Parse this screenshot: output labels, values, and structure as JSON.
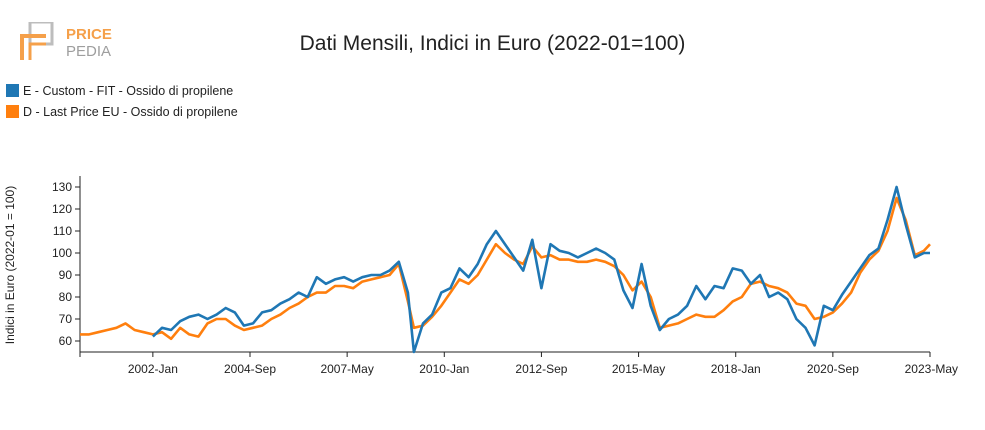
{
  "logo": {
    "brand_top": "PRICE",
    "brand_bottom": "PEDIA",
    "colors": {
      "primary": "#f5a04a",
      "secondary": "#9e9e9e"
    }
  },
  "chart_data": {
    "type": "line",
    "title": "Dati Mensili, Indici in Euro (2022-01=100)",
    "xlabel": "",
    "ylabel": "Indici in Euro (2022-01 = 100)",
    "ylim": [
      55,
      135
    ],
    "yticks": [
      60,
      70,
      80,
      90,
      100,
      110,
      120,
      130
    ],
    "xlim": [
      "2000-01",
      "2023-05"
    ],
    "xticks": [
      "2002-Jan",
      "2004-Sep",
      "2007-May",
      "2010-Jan",
      "2012-Sep",
      "2015-May",
      "2018-Jan",
      "2020-Sep",
      "2023-May"
    ],
    "grid": false,
    "legend_position": "top-left",
    "series": [
      {
        "name": "E - Custom - FIT - Ossido di propilene",
        "color": "#1f77b4",
        "points": [
          [
            "2002-01",
            62
          ],
          [
            "2002-04",
            66
          ],
          [
            "2002-07",
            65
          ],
          [
            "2002-10",
            69
          ],
          [
            "2003-01",
            71
          ],
          [
            "2003-04",
            72
          ],
          [
            "2003-07",
            70
          ],
          [
            "2003-10",
            72
          ],
          [
            "2004-01",
            75
          ],
          [
            "2004-04",
            73
          ],
          [
            "2004-07",
            67
          ],
          [
            "2004-10",
            68
          ],
          [
            "2005-01",
            73
          ],
          [
            "2005-04",
            74
          ],
          [
            "2005-07",
            77
          ],
          [
            "2005-10",
            79
          ],
          [
            "2006-01",
            82
          ],
          [
            "2006-04",
            80
          ],
          [
            "2006-07",
            89
          ],
          [
            "2006-10",
            86
          ],
          [
            "2007-01",
            88
          ],
          [
            "2007-04",
            89
          ],
          [
            "2007-07",
            87
          ],
          [
            "2007-10",
            89
          ],
          [
            "2008-01",
            90
          ],
          [
            "2008-04",
            90
          ],
          [
            "2008-07",
            92
          ],
          [
            "2008-10",
            96
          ],
          [
            "2009-01",
            82
          ],
          [
            "2009-03",
            55
          ],
          [
            "2009-06",
            68
          ],
          [
            "2009-09",
            72
          ],
          [
            "2009-12",
            82
          ],
          [
            "2010-03",
            84
          ],
          [
            "2010-06",
            93
          ],
          [
            "2010-09",
            89
          ],
          [
            "2010-12",
            95
          ],
          [
            "2011-03",
            104
          ],
          [
            "2011-06",
            110
          ],
          [
            "2011-09",
            104
          ],
          [
            "2011-12",
            98
          ],
          [
            "2012-03",
            92
          ],
          [
            "2012-06",
            106
          ],
          [
            "2012-09",
            84
          ],
          [
            "2012-12",
            104
          ],
          [
            "2013-03",
            101
          ],
          [
            "2013-06",
            100
          ],
          [
            "2013-09",
            98
          ],
          [
            "2013-12",
            100
          ],
          [
            "2014-03",
            102
          ],
          [
            "2014-06",
            100
          ],
          [
            "2014-09",
            97
          ],
          [
            "2014-12",
            83
          ],
          [
            "2015-03",
            75
          ],
          [
            "2015-06",
            95
          ],
          [
            "2015-09",
            76
          ],
          [
            "2015-12",
            65
          ],
          [
            "2016-03",
            70
          ],
          [
            "2016-06",
            72
          ],
          [
            "2016-09",
            76
          ],
          [
            "2016-12",
            85
          ],
          [
            "2017-03",
            79
          ],
          [
            "2017-06",
            85
          ],
          [
            "2017-09",
            84
          ],
          [
            "2017-12",
            93
          ],
          [
            "2018-03",
            92
          ],
          [
            "2018-06",
            86
          ],
          [
            "2018-09",
            90
          ],
          [
            "2018-12",
            80
          ],
          [
            "2019-03",
            82
          ],
          [
            "2019-06",
            79
          ],
          [
            "2019-09",
            70
          ],
          [
            "2019-12",
            66
          ],
          [
            "2020-03",
            58
          ],
          [
            "2020-06",
            76
          ],
          [
            "2020-09",
            74
          ],
          [
            "2020-12",
            81
          ],
          [
            "2021-03",
            87
          ],
          [
            "2021-06",
            93
          ],
          [
            "2021-09",
            99
          ],
          [
            "2021-12",
            102
          ],
          [
            "2022-03",
            115
          ],
          [
            "2022-06",
            130
          ],
          [
            "2022-09",
            113
          ],
          [
            "2022-12",
            98
          ],
          [
            "2023-03",
            100
          ],
          [
            "2023-05",
            100
          ]
        ]
      },
      {
        "name": "D - Last Price EU - Ossido di propilene",
        "color": "#ff7f0e",
        "points": [
          [
            "2000-01",
            63
          ],
          [
            "2000-04",
            63
          ],
          [
            "2000-07",
            64
          ],
          [
            "2000-10",
            65
          ],
          [
            "2001-01",
            66
          ],
          [
            "2001-04",
            68
          ],
          [
            "2001-07",
            65
          ],
          [
            "2001-10",
            64
          ],
          [
            "2002-01",
            63
          ],
          [
            "2002-04",
            64
          ],
          [
            "2002-07",
            61
          ],
          [
            "2002-10",
            66
          ],
          [
            "2003-01",
            63
          ],
          [
            "2003-04",
            62
          ],
          [
            "2003-07",
            68
          ],
          [
            "2003-10",
            70
          ],
          [
            "2004-01",
            70
          ],
          [
            "2004-04",
            67
          ],
          [
            "2004-07",
            65
          ],
          [
            "2004-10",
            66
          ],
          [
            "2005-01",
            67
          ],
          [
            "2005-04",
            70
          ],
          [
            "2005-07",
            72
          ],
          [
            "2005-10",
            75
          ],
          [
            "2006-01",
            77
          ],
          [
            "2006-04",
            80
          ],
          [
            "2006-07",
            82
          ],
          [
            "2006-10",
            82
          ],
          [
            "2007-01",
            85
          ],
          [
            "2007-04",
            85
          ],
          [
            "2007-07",
            84
          ],
          [
            "2007-10",
            87
          ],
          [
            "2008-01",
            88
          ],
          [
            "2008-04",
            89
          ],
          [
            "2008-07",
            90
          ],
          [
            "2008-10",
            95
          ],
          [
            "2009-01",
            78
          ],
          [
            "2009-03",
            66
          ],
          [
            "2009-06",
            67
          ],
          [
            "2009-09",
            71
          ],
          [
            "2009-12",
            76
          ],
          [
            "2010-03",
            82
          ],
          [
            "2010-06",
            88
          ],
          [
            "2010-09",
            86
          ],
          [
            "2010-12",
            90
          ],
          [
            "2011-03",
            97
          ],
          [
            "2011-06",
            104
          ],
          [
            "2011-09",
            100
          ],
          [
            "2011-12",
            97
          ],
          [
            "2012-03",
            95
          ],
          [
            "2012-06",
            103
          ],
          [
            "2012-09",
            98
          ],
          [
            "2012-12",
            99
          ],
          [
            "2013-03",
            97
          ],
          [
            "2013-06",
            97
          ],
          [
            "2013-09",
            96
          ],
          [
            "2013-12",
            96
          ],
          [
            "2014-03",
            97
          ],
          [
            "2014-06",
            96
          ],
          [
            "2014-09",
            94
          ],
          [
            "2014-12",
            90
          ],
          [
            "2015-03",
            83
          ],
          [
            "2015-06",
            87
          ],
          [
            "2015-09",
            80
          ],
          [
            "2015-12",
            66
          ],
          [
            "2016-03",
            67
          ],
          [
            "2016-06",
            68
          ],
          [
            "2016-09",
            70
          ],
          [
            "2016-12",
            72
          ],
          [
            "2017-03",
            71
          ],
          [
            "2017-06",
            71
          ],
          [
            "2017-09",
            74
          ],
          [
            "2017-12",
            78
          ],
          [
            "2018-03",
            80
          ],
          [
            "2018-06",
            86
          ],
          [
            "2018-09",
            87
          ],
          [
            "2018-12",
            85
          ],
          [
            "2019-03",
            84
          ],
          [
            "2019-06",
            82
          ],
          [
            "2019-09",
            77
          ],
          [
            "2019-12",
            76
          ],
          [
            "2020-03",
            70
          ],
          [
            "2020-06",
            71
          ],
          [
            "2020-09",
            73
          ],
          [
            "2020-12",
            77
          ],
          [
            "2021-03",
            82
          ],
          [
            "2021-06",
            91
          ],
          [
            "2021-09",
            97
          ],
          [
            "2021-12",
            101
          ],
          [
            "2022-03",
            110
          ],
          [
            "2022-06",
            125
          ],
          [
            "2022-09",
            115
          ],
          [
            "2022-12",
            99
          ],
          [
            "2023-03",
            101
          ],
          [
            "2023-05",
            104
          ]
        ]
      }
    ]
  }
}
